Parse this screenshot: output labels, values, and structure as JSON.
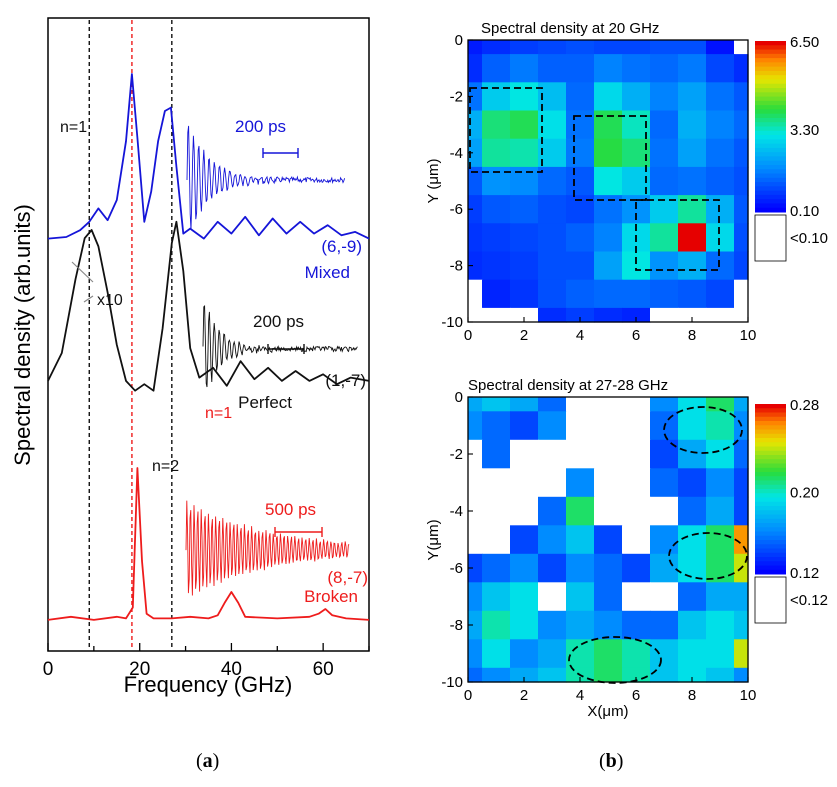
{
  "colors": {
    "blue": "#1515d8",
    "black": "#111111",
    "red": "#ee1c1c"
  },
  "captions": {
    "a": {
      "open": "(",
      "letter": "a",
      "close": ")"
    },
    "b": {
      "open": "(",
      "letter": "b",
      "close": ")"
    }
  },
  "chart_data": [
    {
      "type": "line",
      "panel": "a",
      "xlabel": "Frequency (GHz)",
      "ylabel": "Spectral density (arb.units)",
      "xlim": [
        0,
        70
      ],
      "xticks": [
        "0",
        "20",
        "40",
        "60"
      ],
      "vlines": [
        {
          "x": 9,
          "color": "#111111",
          "label": "n=1"
        },
        {
          "x": 18.3,
          "color": "#ee1c1c",
          "label": "n=1"
        },
        {
          "x": 27,
          "color": "#111111",
          "label": "n=2"
        }
      ],
      "series": [
        {
          "name": "Mixed",
          "index_label": "(6,-9)",
          "inset_scale": "200 ps",
          "multiplier": "x10",
          "color": "#1515d8",
          "x": [
            0,
            4,
            7,
            9,
            11,
            13,
            15,
            17,
            18.3,
            19.5,
            21,
            22.5,
            24,
            25.5,
            26.8,
            28,
            29.5,
            31,
            34,
            37,
            40,
            43,
            46,
            49,
            52,
            55,
            58,
            61,
            64,
            67,
            70
          ],
          "y": [
            0.02,
            0.03,
            0.07,
            0.12,
            0.2,
            0.13,
            0.25,
            0.6,
            1.0,
            0.62,
            0.12,
            0.3,
            0.6,
            0.78,
            0.8,
            0.45,
            0.05,
            0.08,
            0.02,
            0.12,
            0.05,
            0.15,
            0.04,
            0.14,
            0.05,
            0.12,
            0.05,
            0.1,
            0.04,
            0.06,
            0.02
          ]
        },
        {
          "name": "Perfect",
          "index_label": "(1,-7)",
          "inset_scale": "200 ps",
          "color": "#111111",
          "x": [
            0,
            3,
            6,
            8,
            9.5,
            11,
            13,
            15,
            17,
            19,
            21,
            23,
            25,
            27,
            28,
            29.5,
            31,
            33,
            36,
            39,
            42,
            45,
            48,
            51,
            54,
            57,
            60,
            63,
            66,
            70
          ],
          "y": [
            0.08,
            0.25,
            0.7,
            0.95,
            1.0,
            0.9,
            0.62,
            0.3,
            0.08,
            0.02,
            0.06,
            0.02,
            0.4,
            0.92,
            1.05,
            0.75,
            0.28,
            0.1,
            0.16,
            0.05,
            0.2,
            0.09,
            0.16,
            0.08,
            0.14,
            0.08,
            0.12,
            0.06,
            0.1,
            0.08
          ]
        },
        {
          "name": "Broken",
          "index_label": "(8,-7)",
          "inset_scale": "500 ps",
          "color": "#ee1c1c",
          "x": [
            0,
            5,
            10,
            15,
            17,
            18.5,
            19.5,
            20.5,
            21.5,
            23,
            27,
            31,
            35,
            37,
            38.5,
            40,
            41.5,
            43,
            50,
            57,
            59,
            60.5,
            62,
            65,
            70
          ],
          "y": [
            0.02,
            0.04,
            0.02,
            0.04,
            0.03,
            0.1,
            1.0,
            0.4,
            0.06,
            0.03,
            0.03,
            0.04,
            0.03,
            0.05,
            0.13,
            0.2,
            0.13,
            0.04,
            0.03,
            0.04,
            0.06,
            0.09,
            0.05,
            0.03,
            0.02
          ]
        }
      ]
    },
    {
      "type": "heatmap",
      "panel": "b-top",
      "title": "Spectral density at 20 GHz",
      "xlabel": "",
      "ylabel": "Y (μm)",
      "xlim": [
        0,
        10
      ],
      "ylim": [
        -10,
        0
      ],
      "xticks": [
        "0",
        "2",
        "4",
        "6",
        "8",
        "10"
      ],
      "yticks": [
        "0",
        "-2",
        "-4",
        "-6",
        "-8",
        "-10"
      ],
      "colorbar": {
        "max": "6.50",
        "mid": "3.30",
        "min": "0.10",
        "below": "<0.10"
      },
      "x": [
        0,
        1,
        2,
        3,
        4,
        5,
        6,
        7,
        8,
        9,
        10
      ],
      "y": [
        0,
        -1,
        -2,
        -3,
        -4,
        -5,
        -6,
        -7,
        -8,
        -9,
        -10
      ],
      "z": [
        [
          0.4,
          0.6,
          0.8,
          0.9,
          1.0,
          0.9,
          0.9,
          1.0,
          1.0,
          0.3,
          0.05
        ],
        [
          0.6,
          1.2,
          1.5,
          1.2,
          1.2,
          1.6,
          1.4,
          1.3,
          1.5,
          0.9,
          0.6
        ],
        [
          1.4,
          2.6,
          3.0,
          2.4,
          1.3,
          2.8,
          2.2,
          1.6,
          2.0,
          1.4,
          1.1
        ],
        [
          2.2,
          3.6,
          3.8,
          2.9,
          1.4,
          3.8,
          3.2,
          1.3,
          2.2,
          1.6,
          1.3
        ],
        [
          2.0,
          3.4,
          3.3,
          2.6,
          1.5,
          3.9,
          3.6,
          1.4,
          2.0,
          1.4,
          1.1
        ],
        [
          1.1,
          1.8,
          1.7,
          1.3,
          1.1,
          3.0,
          2.6,
          1.3,
          1.4,
          1.2,
          1.0
        ],
        [
          0.8,
          1.1,
          1.2,
          1.0,
          0.9,
          1.4,
          1.8,
          2.6,
          3.4,
          2.2,
          1.1
        ],
        [
          0.7,
          0.8,
          0.9,
          1.0,
          1.2,
          1.6,
          2.8,
          3.4,
          6.5,
          2.8,
          1.0
        ],
        [
          0.6,
          0.7,
          0.8,
          1.0,
          1.0,
          2.0,
          3.0,
          1.8,
          2.2,
          1.3,
          0.9
        ],
        [
          0.05,
          0.5,
          0.7,
          1.0,
          1.2,
          1.3,
          1.3,
          1.2,
          1.1,
          0.9,
          0.05
        ],
        [
          0.05,
          0.05,
          0.05,
          0.6,
          0.8,
          0.6,
          0.5,
          0.05,
          0.05,
          0.05,
          0.05
        ]
      ]
    },
    {
      "type": "heatmap",
      "panel": "b-bottom",
      "title": "Spectral density at 27-28 GHz",
      "xlabel": "X(μm)",
      "ylabel": "Y(μm)",
      "xlim": [
        0,
        10
      ],
      "ylim": [
        -10,
        0
      ],
      "xticks": [
        "0",
        "2",
        "4",
        "6",
        "8",
        "10"
      ],
      "yticks": [
        "0",
        "-2",
        "-4",
        "-6",
        "-8",
        "-10"
      ],
      "colorbar": {
        "max": "0.28",
        "mid": "0.20",
        "min": "0.12",
        "below": "<0.12"
      },
      "x": [
        0,
        1,
        2,
        3,
        4,
        5,
        6,
        7,
        8,
        9,
        10
      ],
      "y": [
        0,
        -1,
        -2,
        -3,
        -4,
        -5,
        -6,
        -7,
        -8,
        -9,
        -10
      ],
      "z": [
        [
          0.17,
          0.18,
          0.17,
          0.15,
          0.05,
          0.05,
          0.05,
          0.16,
          0.19,
          0.21,
          0.17
        ],
        [
          0.16,
          0.15,
          0.14,
          0.16,
          0.05,
          0.05,
          0.05,
          0.15,
          0.19,
          0.2,
          0.16
        ],
        [
          0.05,
          0.15,
          0.05,
          0.05,
          0.05,
          0.05,
          0.05,
          0.14,
          0.17,
          0.19,
          0.15
        ],
        [
          0.05,
          0.05,
          0.05,
          0.05,
          0.16,
          0.05,
          0.05,
          0.15,
          0.14,
          0.16,
          0.14
        ],
        [
          0.05,
          0.05,
          0.05,
          0.15,
          0.21,
          0.05,
          0.05,
          0.05,
          0.15,
          0.17,
          0.14
        ],
        [
          0.05,
          0.05,
          0.14,
          0.16,
          0.18,
          0.14,
          0.05,
          0.16,
          0.19,
          0.21,
          0.26
        ],
        [
          0.14,
          0.15,
          0.16,
          0.14,
          0.16,
          0.15,
          0.14,
          0.17,
          0.19,
          0.21,
          0.24
        ],
        [
          0.16,
          0.18,
          0.19,
          0.05,
          0.18,
          0.15,
          0.05,
          0.05,
          0.15,
          0.17,
          0.17
        ],
        [
          0.17,
          0.2,
          0.19,
          0.16,
          0.17,
          0.16,
          0.15,
          0.15,
          0.18,
          0.19,
          0.18
        ],
        [
          0.16,
          0.19,
          0.16,
          0.17,
          0.2,
          0.21,
          0.2,
          0.18,
          0.19,
          0.19,
          0.24
        ],
        [
          0.15,
          0.16,
          0.17,
          0.18,
          0.2,
          0.21,
          0.2,
          0.18,
          0.19,
          0.18,
          0.16
        ]
      ]
    }
  ]
}
